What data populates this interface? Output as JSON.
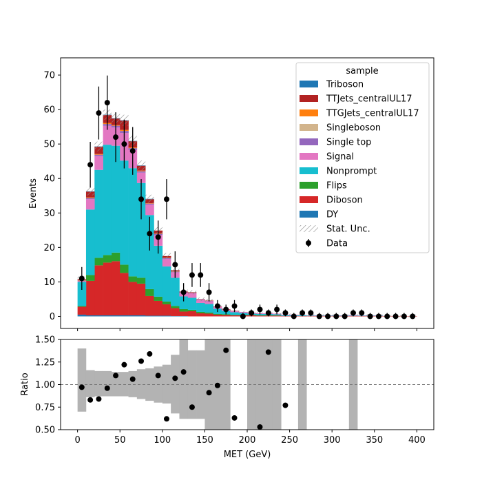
{
  "chart_data": [
    {
      "type": "bar",
      "subtype": "stacked-histogram-with-data-points",
      "ylabel": "Events",
      "xlim": [
        -20,
        420
      ],
      "ylim": [
        -3.5,
        75
      ],
      "yticks": [
        0,
        10,
        20,
        30,
        40,
        50,
        60,
        70
      ],
      "bin_width": 10,
      "bin_edges": [
        0,
        10,
        20,
        30,
        40,
        50,
        60,
        70,
        80,
        90,
        100,
        110,
        120,
        130,
        140,
        150,
        160,
        170,
        180,
        190,
        200,
        210,
        220,
        230,
        240,
        250,
        260,
        270,
        280,
        290,
        300,
        310,
        320,
        330,
        340,
        350,
        360,
        370,
        380,
        390,
        400
      ],
      "legend": {
        "title": "sample",
        "placement": "top-right",
        "entries": [
          "Triboson",
          "TTJets_centralUL17",
          "TTGJets_centralUL17",
          "Singleboson",
          "Single top",
          "Signal",
          "Nonprompt",
          "Flips",
          "Diboson",
          "DY",
          "Stat. Unc.",
          "Data"
        ]
      },
      "colors": {
        "DY": "#1f77b4",
        "Diboson": "#d62728",
        "Flips": "#2ca02c",
        "Nonprompt": "#17becf",
        "Signal": "#e377c2",
        "Single top": "#9467bd",
        "Singleboson": "#d2b48c",
        "TTGJets_centralUL17": "#ff7f0e",
        "TTJets_centralUL17": "#b22222",
        "Triboson": "#1f77b4",
        "Stat. Unc.": "#9a9a9a",
        "Data": "#000000"
      },
      "series": [
        {
          "name": "DY",
          "values": [
            0.5,
            0.3,
            0.3,
            0.3,
            0.3,
            0.3,
            0.3,
            0.3,
            0.2,
            0.2,
            0.2,
            0.1,
            0.1,
            0,
            0,
            0,
            0,
            0,
            0,
            0,
            0,
            0,
            0,
            0,
            0,
            0,
            0,
            0,
            0,
            0,
            0,
            0,
            0,
            0,
            0,
            0,
            0,
            0,
            0,
            0
          ]
        },
        {
          "name": "Diboson",
          "values": [
            2.3,
            10,
            14.5,
            15.3,
            15.7,
            12.3,
            9.7,
            9.2,
            5.7,
            4.3,
            3.3,
            2.3,
            1.3,
            1.5,
            0.9,
            0.8,
            0.5,
            0.4,
            0.3,
            0.3,
            0.3,
            0.2,
            0.2,
            0.2,
            0.1,
            0.1,
            0.1,
            0.1,
            0.1,
            0.1,
            0.1,
            0.1,
            0.1,
            0.1,
            0.1,
            0.1,
            0.1,
            0.1,
            0.1,
            0.1
          ]
        },
        {
          "name": "Flips",
          "values": [
            0.2,
            1.7,
            2.2,
            2.2,
            2.5,
            2.4,
            1.6,
            1.7,
            2,
            1.2,
            0.8,
            0.6,
            0.7,
            0.4,
            0.4,
            0.3,
            0.2,
            0.2,
            0.1,
            0.1,
            0.1,
            0.1,
            0.1,
            0.1,
            0,
            0,
            0,
            0,
            0,
            0,
            0,
            0,
            0,
            0,
            0,
            0,
            0,
            0,
            0,
            0
          ]
        },
        {
          "name": "Nonprompt",
          "values": [
            7,
            19,
            25.5,
            32,
            31,
            30.2,
            31.4,
            27.5,
            21.5,
            14.8,
            10.2,
            8.2,
            3.7,
            3.5,
            2.6,
            2.5,
            1.5,
            1,
            0.8,
            0.6,
            0.4,
            0.4,
            0.4,
            0.3,
            0.2,
            0.2,
            0.2,
            0.1,
            0.1,
            0.1,
            0.1,
            0.1,
            0.1,
            0.1,
            0.1,
            0.1,
            0,
            0,
            0,
            0
          ]
        },
        {
          "name": "Signal",
          "values": [
            0.3,
            3,
            4,
            5.5,
            5.3,
            8,
            5.3,
            3,
            3,
            3.1,
            2.2,
            1.6,
            1.1,
            1.3,
            0.9,
            0.8,
            0.6,
            0.4,
            0.3,
            0.3,
            0.3,
            0.2,
            0.2,
            0.2,
            0.2,
            0.2,
            0.1,
            0.1,
            0.1,
            0.1,
            0.1,
            0.1,
            0.2,
            0.1,
            0.1,
            0.1,
            0,
            0,
            0,
            0
          ]
        },
        {
          "name": "Single top",
          "values": [
            0.1,
            0.3,
            0.4,
            0.5,
            0.5,
            0.6,
            0.5,
            0.4,
            0.3,
            0.3,
            0.2,
            0.2,
            0.1,
            0.1,
            0.1,
            0.1,
            0,
            0,
            0,
            0,
            0,
            0,
            0,
            0,
            0,
            0,
            0,
            0,
            0,
            0,
            0,
            0,
            0,
            0,
            0,
            0,
            0,
            0,
            0,
            0
          ]
        },
        {
          "name": "Singleboson",
          "values": [
            0,
            0,
            0,
            0,
            0,
            0,
            0,
            0,
            0,
            0,
            0,
            0,
            0,
            0,
            0,
            0,
            0,
            0,
            0,
            0,
            0,
            0,
            0,
            0,
            0,
            0,
            0,
            0,
            0,
            0,
            0,
            0,
            0,
            0,
            0,
            0,
            0,
            0,
            0,
            0
          ]
        },
        {
          "name": "TTGJets_centralUL17",
          "values": [
            0.1,
            0.2,
            0.2,
            0.3,
            0.2,
            0.3,
            0.2,
            0.2,
            0.1,
            0.1,
            0.1,
            0.1,
            0,
            0,
            0,
            0,
            0,
            0,
            0,
            0,
            0,
            0,
            0,
            0,
            0,
            0,
            0,
            0,
            0,
            0,
            0,
            0,
            0,
            0,
            0,
            0,
            0,
            0,
            0,
            0
          ]
        },
        {
          "name": "TTJets_centralUL17",
          "values": [
            0.3,
            1.7,
            2.1,
            2.3,
            1.9,
            2.7,
            1.8,
            1.4,
            1.2,
            0.9,
            0.5,
            0.3,
            0.2,
            0.2,
            0.1,
            0.1,
            0.1,
            0.1,
            0.1,
            0,
            0,
            0,
            0,
            0,
            0,
            0,
            0,
            0,
            0,
            0,
            0,
            0,
            0,
            0,
            0,
            0,
            0,
            0,
            0,
            0
          ]
        },
        {
          "name": "Triboson",
          "values": [
            0,
            0.1,
            0.1,
            0.1,
            0.1,
            0.1,
            0.1,
            0.1,
            0.1,
            0,
            0,
            0,
            0,
            0,
            0,
            0,
            0,
            0,
            0,
            0,
            0,
            0,
            0,
            0,
            0,
            0,
            0,
            0,
            0,
            0,
            0,
            0,
            0,
            0,
            0,
            0,
            0,
            0,
            0,
            0
          ]
        }
      ],
      "stat_unc": [
        0.8,
        1.2,
        1.4,
        1.5,
        1.5,
        1.6,
        1.5,
        1.4,
        1.2,
        1,
        0.9,
        0.8,
        0.6,
        0.6,
        0.5,
        0.5,
        0.4,
        0.4,
        0.3,
        0.3,
        0.3,
        0.3,
        0.3,
        0.3,
        0.3,
        0.3,
        0.3,
        0.3,
        0.3,
        0.3,
        0.3,
        0.3,
        0.3,
        0.3,
        0.3,
        0.3,
        0.3,
        0.3,
        0.3,
        0.3
      ],
      "data": {
        "name": "Data",
        "x": [
          5,
          15,
          25,
          35,
          45,
          55,
          65,
          75,
          85,
          95,
          105,
          115,
          125,
          135,
          145,
          155,
          165,
          175,
          185,
          195,
          205,
          215,
          225,
          235,
          245,
          255,
          265,
          275,
          285,
          295,
          305,
          315,
          325,
          335,
          345,
          355,
          365,
          375,
          385,
          395
        ],
        "y": [
          11,
          44,
          59,
          62,
          52,
          50,
          48,
          34,
          24,
          23,
          34,
          15,
          7,
          12,
          12,
          7,
          3,
          2,
          3,
          0,
          1,
          2,
          1,
          2,
          1,
          0,
          1,
          1,
          0,
          0,
          0,
          0,
          1,
          1,
          0,
          0,
          0,
          0,
          0,
          0
        ]
      }
    },
    {
      "type": "scatter",
      "xlabel": "MET (GeV)",
      "ylabel": "Ratio",
      "xlim": [
        -20,
        420
      ],
      "ylim": [
        0.5,
        1.5
      ],
      "xticks": [
        0,
        50,
        100,
        150,
        200,
        250,
        300,
        350,
        400
      ],
      "yticks": [
        0.5,
        0.75,
        1.0,
        1.25,
        1.5
      ],
      "yticklabels": [
        "0.50",
        "0.75",
        "1.00",
        "1.25",
        "1.50"
      ],
      "reference_line": 1.0,
      "unc_band": [
        [
          0.7,
          1.4
        ],
        [
          0.86,
          1.16
        ],
        [
          0.87,
          1.15
        ],
        [
          0.87,
          1.15
        ],
        [
          0.87,
          1.14
        ],
        [
          0.87,
          1.14
        ],
        [
          0.86,
          1.15
        ],
        [
          0.84,
          1.17
        ],
        [
          0.82,
          1.18
        ],
        [
          0.8,
          1.2
        ],
        [
          0.79,
          1.22
        ],
        [
          0.68,
          1.33
        ],
        [
          0.62,
          1.52
        ],
        [
          0.62,
          1.38
        ],
        [
          0.62,
          1.38
        ],
        [
          0.5,
          1.5
        ],
        [
          0.5,
          1.5
        ],
        [
          0.5,
          1.5
        ],
        [
          null,
          null
        ],
        [
          null,
          null
        ],
        [
          0.5,
          1.5
        ],
        [
          0.5,
          1.5
        ],
        [
          0.5,
          1.5
        ],
        [
          0.5,
          1.5
        ],
        [
          null,
          null
        ],
        [
          null,
          null
        ],
        [
          0.5,
          1.5
        ],
        [
          null,
          null
        ],
        [
          null,
          null
        ],
        [
          null,
          null
        ],
        [
          null,
          null
        ],
        [
          null,
          null
        ],
        [
          0.5,
          1.5
        ],
        [
          null,
          null
        ],
        [
          null,
          null
        ],
        [
          null,
          null
        ],
        [
          null,
          null
        ],
        [
          null,
          null
        ],
        [
          null,
          null
        ],
        [
          null,
          null
        ]
      ],
      "points": {
        "x": [
          5,
          15,
          25,
          35,
          45,
          55,
          65,
          75,
          85,
          95,
          105,
          115,
          125,
          135,
          155,
          165,
          175,
          185,
          215,
          225,
          245
        ],
        "y": [
          0.97,
          0.83,
          0.84,
          0.96,
          1.1,
          1.22,
          1.06,
          1.26,
          1.34,
          1.1,
          0.62,
          1.07,
          1.14,
          0.75,
          0.91,
          0.99,
          1.38,
          0.63,
          0.53,
          1.36,
          0.77
        ]
      }
    }
  ]
}
